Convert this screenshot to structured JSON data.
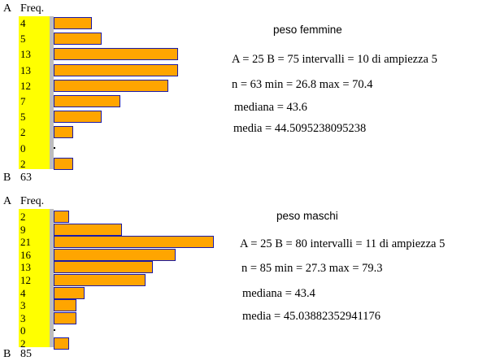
{
  "chart_data": [
    {
      "type": "bar",
      "title": "peso femmine",
      "axis_a_label": "A",
      "freq_header": "Freq.",
      "axis_b_label": "B",
      "total": "63",
      "values": [
        4,
        5,
        13,
        13,
        12,
        7,
        5,
        2,
        0,
        2
      ],
      "value_labels": [
        "4",
        "5",
        "13",
        "13",
        "12",
        "7",
        "5",
        "2",
        "0",
        "2"
      ],
      "stats": {
        "line1": "A = 25  B = 75   intervalli = 10   di ampiezza  5",
        "line2": "n = 63  min = 26.8  max = 70.4",
        "line3": "mediana = 43.6",
        "line4": "media  = 44.5095238095238"
      }
    },
    {
      "type": "bar",
      "title": "peso maschi",
      "axis_a_label": "A",
      "freq_header": "Freq.",
      "axis_b_label": "B",
      "total": "85",
      "values": [
        2,
        9,
        21,
        16,
        13,
        12,
        4,
        3,
        3,
        0,
        2
      ],
      "value_labels": [
        "2",
        "9",
        "21",
        "16",
        "13",
        "12",
        "4",
        "3",
        "3",
        "0",
        "2"
      ],
      "stats": {
        "line1": "A = 25  B = 80   intervalli = 11   di ampiezza  5",
        "line2": "n = 85  min = 27.3  max = 79.3",
        "line3": "mediana = 43.4",
        "line4": "media = 45.03882352941176"
      }
    }
  ]
}
